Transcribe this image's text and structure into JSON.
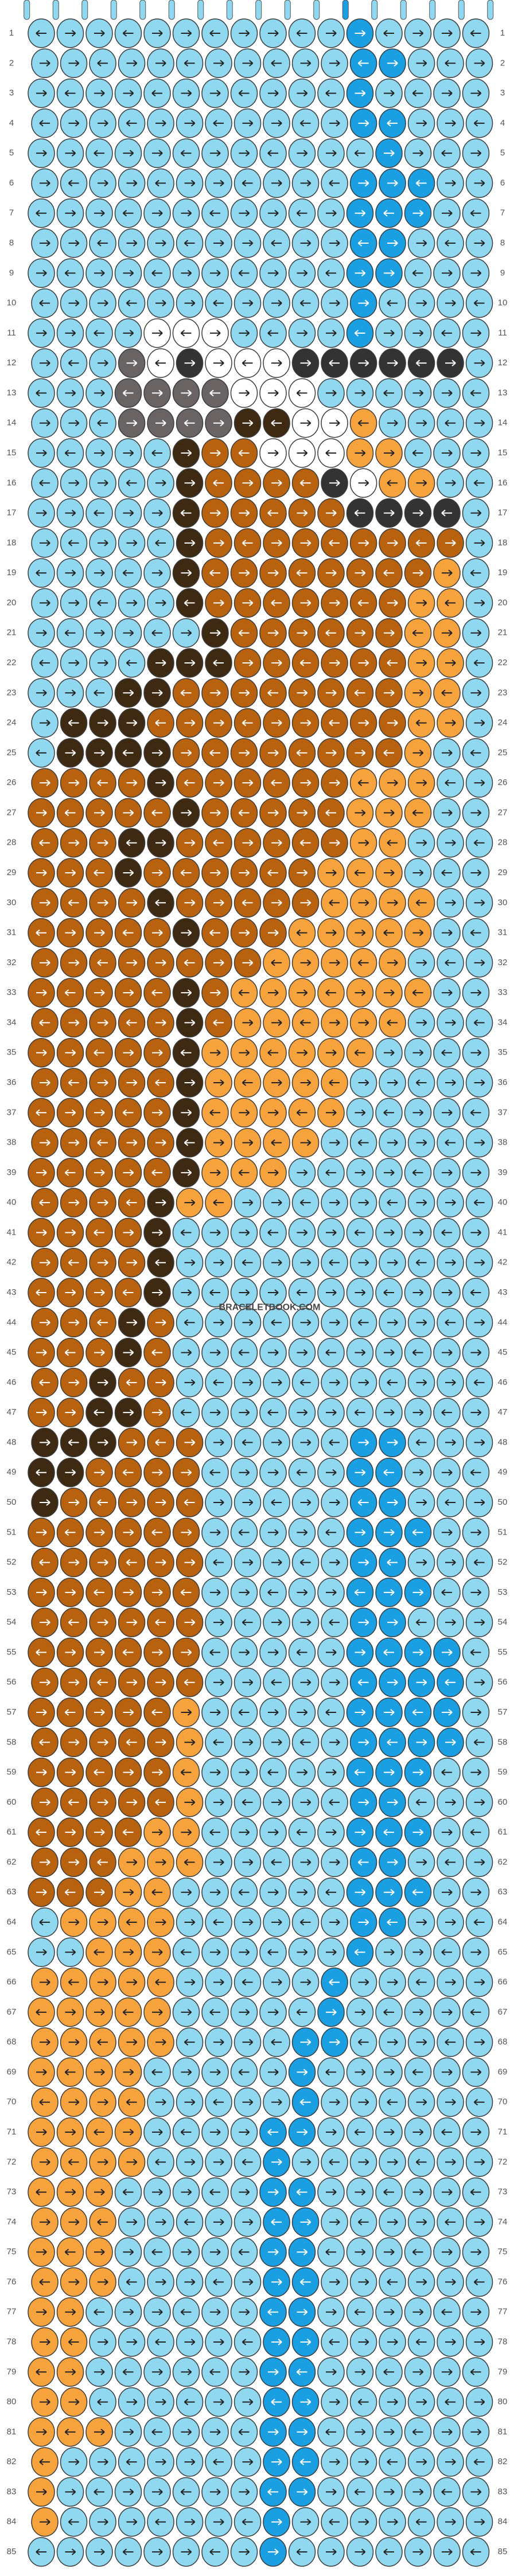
{
  "watermark": "BRACELETBOOK.COM",
  "palette": {
    "L": "#8fd8ef",
    "B": "#1a9fe3",
    "O": "#f6a33e",
    "R": "#b8620f",
    "D": "#3e2a12",
    "G": "#6a6363",
    "W": "#ffffff",
    "K": "#333333"
  },
  "rows": [
    {
      "number": "1",
      "knots": "LLLLLLLLLLLBLLLL"
    },
    {
      "number": "2",
      "knots": "LLLLLLLLLLLBBLLL"
    },
    {
      "number": "3",
      "knots": "LLLLLLLLLLLBLLLL"
    },
    {
      "number": "4",
      "knots": "LLLLLLLLLLLBBLLL"
    },
    {
      "number": "5",
      "knots": "LLLLLLLLLLLLBLLL"
    },
    {
      "number": "6",
      "knots": "LLLLLLLLLLLBBBLL"
    },
    {
      "number": "7",
      "knots": "LLLLLLLLLLLBBBLL"
    },
    {
      "number": "8",
      "knots": "LLLLLLLLLLLBBLLL"
    },
    {
      "number": "9",
      "knots": "LLLLLLLLLLLBBLLL"
    },
    {
      "number": "10",
      "knots": "LLLLLLLLLLLBLLLL"
    },
    {
      "number": "11",
      "knots": "LLLLWWWLLLLBLLLL"
    },
    {
      "number": "12",
      "knots": "LLLGWKWWWKKKKKKL"
    },
    {
      "number": "13",
      "knots": "LLLGGGGWWWLLLLLL"
    },
    {
      "number": "14",
      "knots": "LLLGGGGDDWWOLLLL"
    },
    {
      "number": "15",
      "knots": "LLLLLDRRWWWOOLLL"
    },
    {
      "number": "16",
      "knots": "LLLLLDRRRRKWOOLL"
    },
    {
      "number": "17",
      "knots": "LLLLLDRRRRRKKKKL"
    },
    {
      "number": "18",
      "knots": "LLLLLDRRRRRRRRRL"
    },
    {
      "number": "19",
      "knots": "LLLLLDRRRRRRRROL"
    },
    {
      "number": "20",
      "knots": "LLLLLDRRRRRRROOL"
    },
    {
      "number": "21",
      "knots": "LLLLLLDRRRRRROOL"
    },
    {
      "number": "22",
      "knots": "LLLLDDDRRRRRROOL"
    },
    {
      "number": "23",
      "knots": "LLLDDRRRRRRRROOL"
    },
    {
      "number": "24",
      "knots": "LDDDRRRRRRRRROOL"
    },
    {
      "number": "25",
      "knots": "LDDDDRRRRRRRROLL"
    },
    {
      "number": "26",
      "knots": "RRRRDRRRRRROOOLL"
    },
    {
      "number": "27",
      "knots": "RRRRRDRRRRROOOLL"
    },
    {
      "number": "28",
      "knots": "RRRDDRRRRRROOLLL"
    },
    {
      "number": "29",
      "knots": "RRRDRRRRRROOOLLL"
    },
    {
      "number": "30",
      "knots": "RRRRDRRRRROOOOLL"
    },
    {
      "number": "31",
      "knots": "RRRRRDRRROOOOOLL"
    },
    {
      "number": "32",
      "knots": "RRRRRRRROOOOOLLL"
    },
    {
      "number": "33",
      "knots": "RRRRRDROOOOOOOLL"
    },
    {
      "number": "34",
      "knots": "RRRRRDROOOOOOLLL"
    },
    {
      "number": "35",
      "knots": "RRRRRDOOOOOOLLLL"
    },
    {
      "number": "36",
      "knots": "RRRRRDOOOOOLLLLL"
    },
    {
      "number": "37",
      "knots": "RRRRRDOOOOOLLLLL"
    },
    {
      "number": "38",
      "knots": "RRRRRDOOOOLLLLLL"
    },
    {
      "number": "39",
      "knots": "RRRRRDOOOLLLLLLL"
    },
    {
      "number": "40",
      "knots": "RRRRDOOLLLLLLLLL"
    },
    {
      "number": "41",
      "knots": "RRRRDLLLLLLLLLLL"
    },
    {
      "number": "42",
      "knots": "RRRRDLLLLLLLLLLL"
    },
    {
      "number": "43",
      "knots": "RRRRDLLLLLLLLLLL"
    },
    {
      "number": "44",
      "knots": "RRRDRLLLLLLLLLLL"
    },
    {
      "number": "45",
      "knots": "RRRDRLLLLLLLLLLL"
    },
    {
      "number": "46",
      "knots": "RRDRRLLLLLLLLLLL"
    },
    {
      "number": "47",
      "knots": "RRDDRLLLLLLLLLLL"
    },
    {
      "number": "48",
      "knots": "DDDRRRLLLLLBBLLL"
    },
    {
      "number": "49",
      "knots": "DDRRRRLLLLLBBLLL"
    },
    {
      "number": "50",
      "knots": "DRRRRRLLLLLBBLLL"
    },
    {
      "number": "51",
      "knots": "RRRRRRLLLLLBBBLL"
    },
    {
      "number": "52",
      "knots": "RRRRRRLLLLLBBLLL"
    },
    {
      "number": "53",
      "knots": "RRRRRRLLLLLBBBLL"
    },
    {
      "number": "54",
      "knots": "RRRRRRLLLLLBBLLL"
    },
    {
      "number": "55",
      "knots": "RRRRRRLLLLLBBBBL"
    },
    {
      "number": "56",
      "knots": "RRRRRRLLLLLBBBBL"
    },
    {
      "number": "57",
      "knots": "RRRRROLLLLLBBBBL"
    },
    {
      "number": "58",
      "knots": "RRRRROLLLLLBBBBL"
    },
    {
      "number": "59",
      "knots": "RRRRROLLLLLBBBLL"
    },
    {
      "number": "60",
      "knots": "RRRRROLLLLLBBLLL"
    },
    {
      "number": "61",
      "knots": "RRRROOLLLLLBBBLL"
    },
    {
      "number": "62",
      "knots": "RRROOOLLLLLBBLLL"
    },
    {
      "number": "63",
      "knots": "RRROOLLLLLLBBBLL"
    },
    {
      "number": "64",
      "knots": "LOOOOLLLLLLBBLLL"
    },
    {
      "number": "65",
      "knots": "LLOOOLLLLLLBLLLL"
    },
    {
      "number": "66",
      "knots": "OOOOOLLLLLBLLLLL"
    },
    {
      "number": "67",
      "knots": "OOOOOLLLLLBLLLLL"
    },
    {
      "number": "68",
      "knots": "OOOOOLLLLBBLLLLL"
    },
    {
      "number": "69",
      "knots": "OOOOLLLLLBLLLLLL"
    },
    {
      "number": "70",
      "knots": "OOOOLLLLLBLLLLLL"
    },
    {
      "number": "71",
      "knots": "OOOOLLLLBBLLLLLL"
    },
    {
      "number": "72",
      "knots": "OOOOLLLLBLLLLLLL"
    },
    {
      "number": "73",
      "knots": "OOOLLLLLBBLLLLLL"
    },
    {
      "number": "74",
      "knots": "OOOLLLLLBBLLLLLL"
    },
    {
      "number": "75",
      "knots": "OOOLLLLLBBLLLLLL"
    },
    {
      "number": "76",
      "knots": "OOOLLLLLBBLLLLLL"
    },
    {
      "number": "77",
      "knots": "OOLLLLLLBBLLLLLL"
    },
    {
      "number": "78",
      "knots": "OOLLLLLLBBLLLLLL"
    },
    {
      "number": "79",
      "knots": "OOLLLLLLBBLLLLLL"
    },
    {
      "number": "80",
      "knots": "OOLLLLLLBBLLLLLL"
    },
    {
      "number": "81",
      "knots": "OOOLLLLLBBLLLLLL"
    },
    {
      "number": "82",
      "knots": "OLLLLLLLBBLLLLLL"
    },
    {
      "number": "83",
      "knots": "OLLLLLLLBBLLLLLL"
    },
    {
      "number": "84",
      "knots": "OLLLLLLLBLLLLLLL"
    },
    {
      "number": "85",
      "knots": "LLLLLLLLBLLLLLLL"
    }
  ]
}
